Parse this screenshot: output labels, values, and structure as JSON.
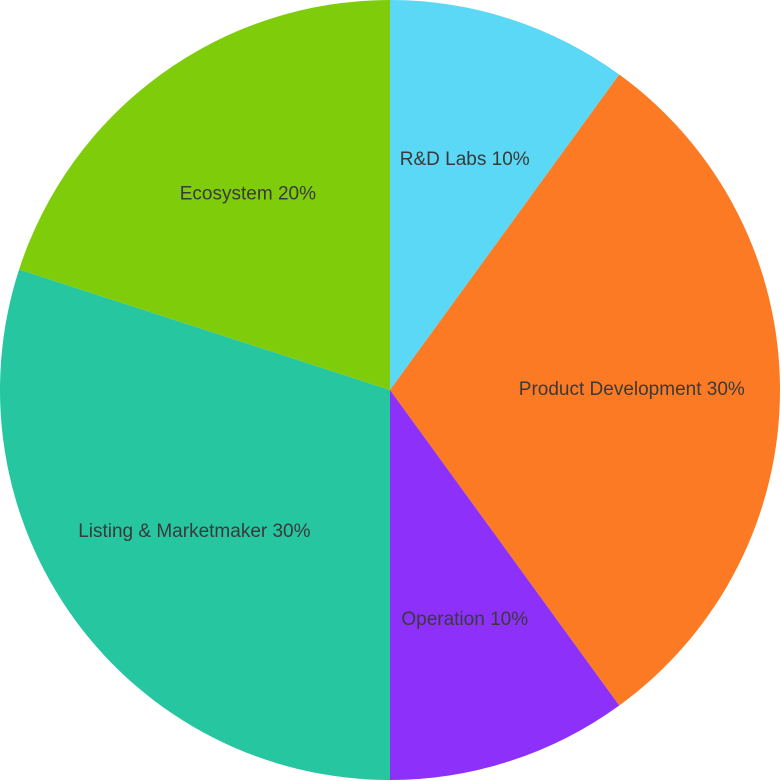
{
  "chart_data": {
    "type": "pie",
    "categories": [
      "R&D Labs 10%",
      "Product Development 30%",
      "Operation 10%",
      "Listing & Marketmaker 30%",
      "Ecosystem 20%"
    ],
    "values": [
      10,
      30,
      10,
      30,
      20
    ],
    "colors": [
      "#5ad8f5",
      "#fc7a23",
      "#8c30fa",
      "#26c6a0",
      "#7fcc0b"
    ]
  }
}
